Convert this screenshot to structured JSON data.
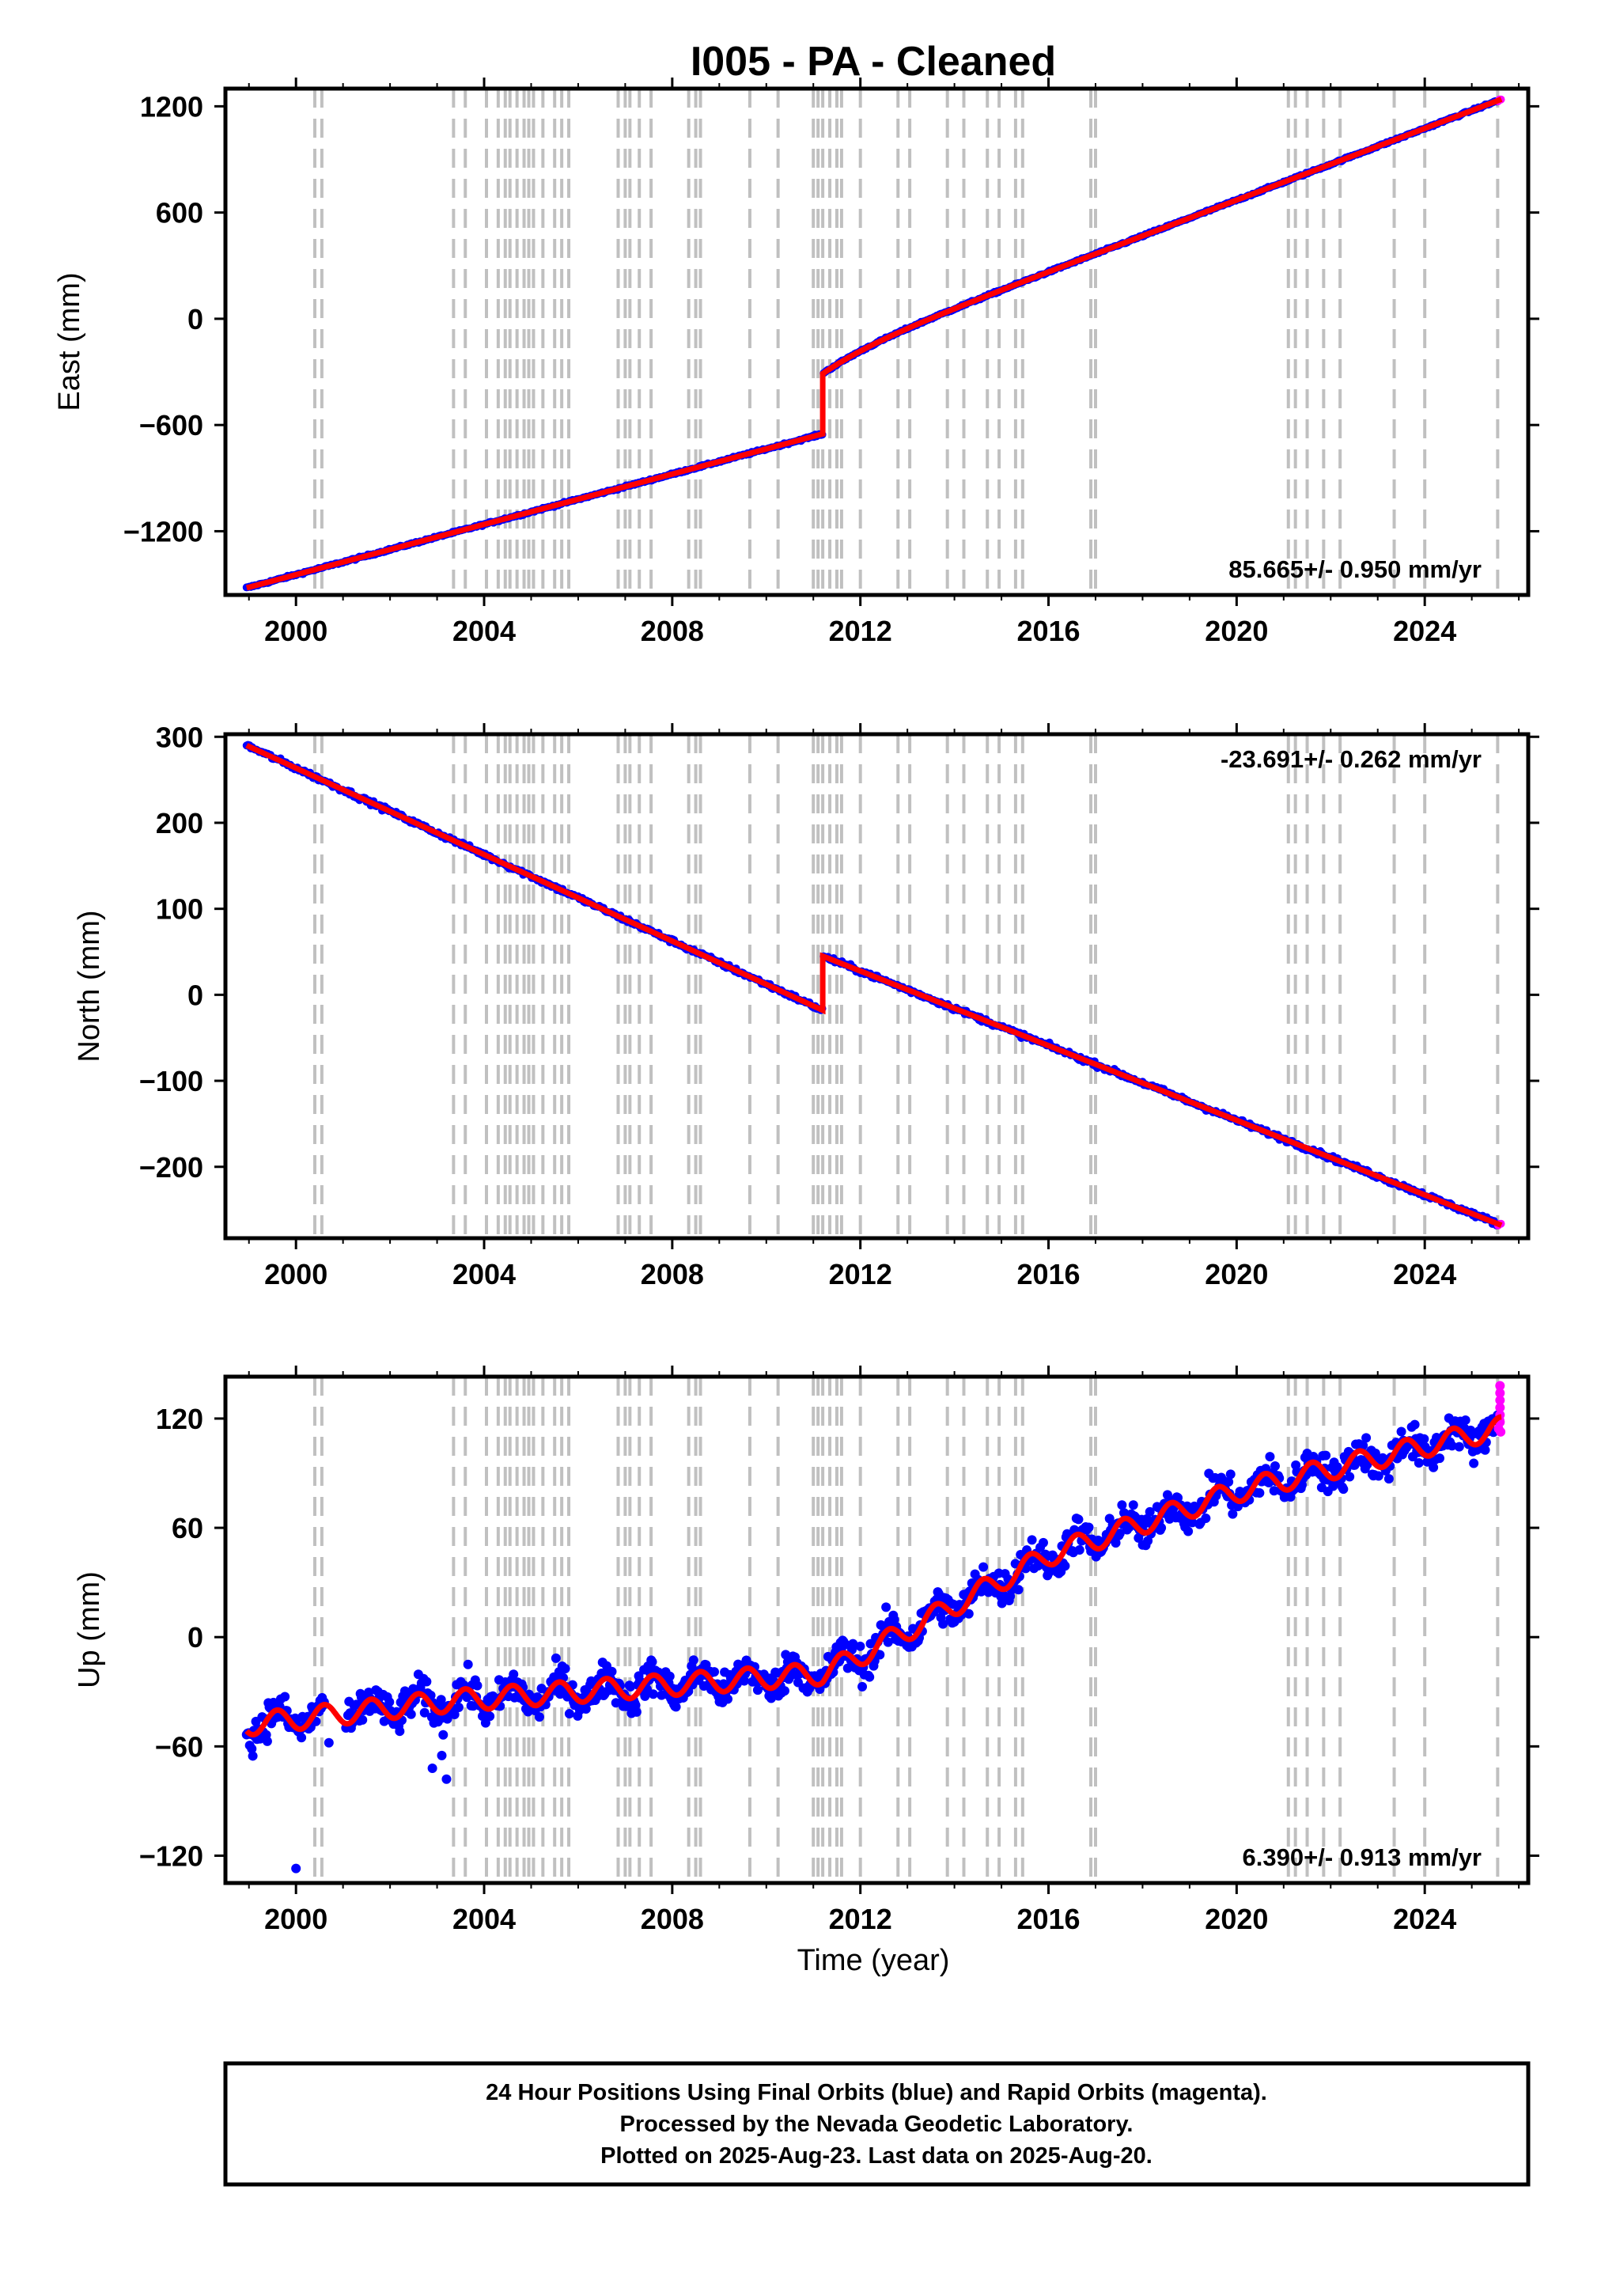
{
  "title": "I005  - PA - Cleaned",
  "xlabel": "Time (year)",
  "x_ticks": [
    2000,
    2004,
    2008,
    2012,
    2016,
    2020,
    2024
  ],
  "x_range": [
    1998.5,
    2026.2
  ],
  "colors": {
    "final_orbits": "#0000ff",
    "rapid_orbits": "#ff00ff",
    "model": "#ff0000",
    "equipment_lines": "#c0c0c0",
    "frame": "#000000"
  },
  "equipment_change_years": [
    2000.4,
    2000.55,
    2003.35,
    2003.6,
    2004.05,
    2004.3,
    2004.45,
    2004.55,
    2004.7,
    2004.85,
    2004.95,
    2005.05,
    2005.25,
    2005.5,
    2005.65,
    2005.8,
    2006.85,
    2007.0,
    2007.1,
    2007.3,
    2007.55,
    2008.35,
    2008.5,
    2008.6,
    2009.65,
    2010.25,
    2011.0,
    2011.1,
    2011.2,
    2011.35,
    2011.5,
    2011.6,
    2012.0,
    2012.8,
    2013.05,
    2013.85,
    2014.2,
    2014.7,
    2014.95,
    2015.3,
    2015.45,
    2016.9,
    2017.0,
    2021.1,
    2021.25,
    2021.5,
    2021.85,
    2022.2,
    2023.35,
    2024.0,
    2025.55
  ],
  "chart_data": [
    {
      "type": "scatter",
      "panel": "east",
      "ylabel": "East (mm)",
      "ylim": [
        -1560,
        1300
      ],
      "yticks": [
        1200,
        600,
        0,
        -600,
        -1200
      ],
      "velocity_label": "85.665+/- 0.950 mm/yr",
      "velocity_label_position": "bottom-right",
      "x_start": 1998.95,
      "x_end": 2025.63,
      "offset_year": 2011.2,
      "y_at_start": -1520,
      "y_before_offset": -650,
      "y_after_offset": -310,
      "y_at_end": 1240,
      "noise_mm": 4
    },
    {
      "type": "scatter",
      "panel": "north",
      "ylabel": "North (mm)",
      "ylim": [
        -283,
        303
      ],
      "yticks": [
        300,
        200,
        100,
        0,
        -100,
        -200
      ],
      "velocity_label": "-23.691+/- 0.262 mm/yr",
      "velocity_label_position": "top-right",
      "x_start": 1998.95,
      "x_end": 2025.63,
      "offset_year": 2011.2,
      "y_at_start": 290,
      "y_before_offset": -18,
      "y_after_offset": 45,
      "y_at_end": -268,
      "noise_mm": 2
    },
    {
      "type": "scatter",
      "panel": "up",
      "ylabel": "Up (mm)",
      "ylim": [
        -135,
        143
      ],
      "yticks": [
        120,
        60,
        0,
        -60,
        -120
      ],
      "velocity_label": "6.390+/- 0.913 mm/yr",
      "velocity_label_position": "bottom-right",
      "x_start": 1998.95,
      "x_end": 2025.63,
      "trend_points": [
        [
          1998.95,
          -48
        ],
        [
          2003.3,
          -35
        ],
        [
          2011.2,
          -20
        ],
        [
          2012.0,
          -10
        ],
        [
          2016.0,
          45
        ],
        [
          2020.0,
          80
        ],
        [
          2025.63,
          115
        ]
      ],
      "seasonal_amplitude_mm": 6,
      "noise_mm": 7,
      "outliers": [
        [
          2000.0,
          -127
        ],
        [
          2003.2,
          -78
        ],
        [
          2003.1,
          -65
        ],
        [
          2002.9,
          -72
        ],
        [
          2000.7,
          -58
        ]
      ]
    }
  ],
  "footer": {
    "line1": "24 Hour Positions Using Final Orbits (blue) and Rapid Orbits (magenta).",
    "line2": "Processed by the Nevada Geodetic Laboratory.",
    "line3": "Plotted on 2025-Aug-23. Last data on 2025-Aug-20."
  }
}
